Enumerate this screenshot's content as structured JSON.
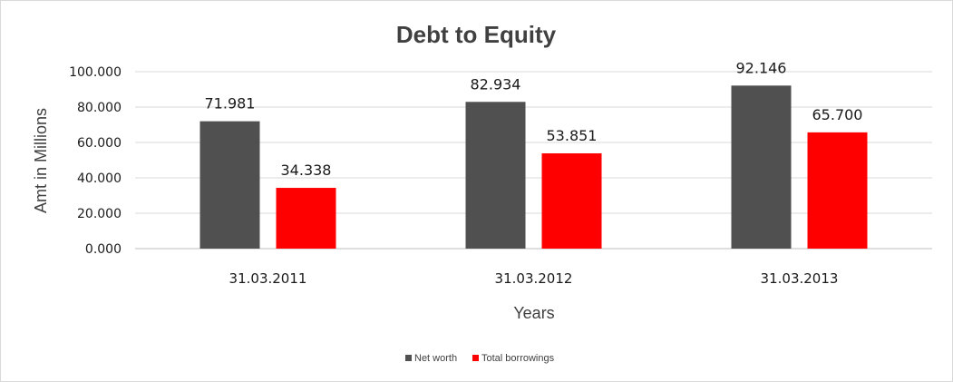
{
  "chart_data": {
    "type": "bar",
    "title": "Debt to Equity",
    "xlabel": "Years",
    "ylabel": "Amt in Millions",
    "categories": [
      "31.03.2011",
      "31.03.2012",
      "31.03.2013"
    ],
    "series": [
      {
        "name": "Net worth",
        "color": "#505050",
        "values": [
          71.981,
          82.934,
          92.146
        ],
        "labels": [
          "71.981",
          "82.934",
          "92.146"
        ]
      },
      {
        "name": "Total borrowings",
        "color": "#ff0000",
        "values": [
          34.338,
          53.851,
          65.7
        ],
        "labels": [
          "34.338",
          "53.851",
          "65.700"
        ]
      }
    ],
    "yticks": [
      "0.000",
      "20.000",
      "40.000",
      "60.000",
      "80.000",
      "100.000"
    ],
    "ylim": [
      0,
      100
    ],
    "grid": true,
    "legend": "bottom"
  }
}
